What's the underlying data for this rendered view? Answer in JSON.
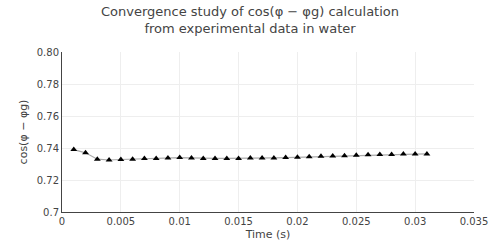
{
  "chart_data": {
    "type": "line",
    "title": "Convergence study of cos(φ − φg) calculation\nfrom experimental data in water",
    "xlabel": "Time (s)",
    "ylabel": "cos(φ − φg)",
    "x": [
      0.001,
      0.002,
      0.003,
      0.004,
      0.005,
      0.006,
      0.007,
      0.008,
      0.009,
      0.01,
      0.011,
      0.012,
      0.013,
      0.014,
      0.015,
      0.016,
      0.017,
      0.018,
      0.019,
      0.02,
      0.021,
      0.022,
      0.023,
      0.024,
      0.025,
      0.026,
      0.027,
      0.028,
      0.029,
      0.03,
      0.031
    ],
    "values": [
      0.739,
      0.737,
      0.733,
      0.7325,
      0.7328,
      0.733,
      0.7335,
      0.7335,
      0.7337,
      0.734,
      0.7338,
      0.7335,
      0.7335,
      0.7335,
      0.7335,
      0.7337,
      0.7338,
      0.7338,
      0.734,
      0.7342,
      0.7345,
      0.7348,
      0.735,
      0.7352,
      0.7355,
      0.7358,
      0.736,
      0.736,
      0.7362,
      0.7362,
      0.7363
    ],
    "color": "#aaaaaa",
    "colors": [
      "#000000",
      "#000000",
      "#000000",
      "#000000",
      "#000000",
      "#000000",
      "#000000",
      "#000000",
      "#000000",
      "#000000",
      "#000000",
      "#000000",
      "#000000",
      "#000000",
      "#000000",
      "#000000",
      "#000000",
      "#000000",
      "#000000",
      "#000000",
      "#000000",
      "#000000",
      "#000000",
      "#000000",
      "#000000",
      "#000000",
      "#000000",
      "#000000",
      "#000000",
      "#000000",
      "#000000"
    ],
    "marker": "triangle-up",
    "xlim": [
      0,
      0.035
    ],
    "ylim": [
      0.7,
      0.8
    ],
    "xticks": [
      0,
      0.005,
      0.01,
      0.015,
      0.02,
      0.025,
      0.03,
      0.035
    ],
    "yticks": [
      0.7,
      0.72,
      0.74,
      0.76,
      0.78,
      {
        "value": 0.8,
        "label": "0.80"
      }
    ],
    "grid": true
  }
}
